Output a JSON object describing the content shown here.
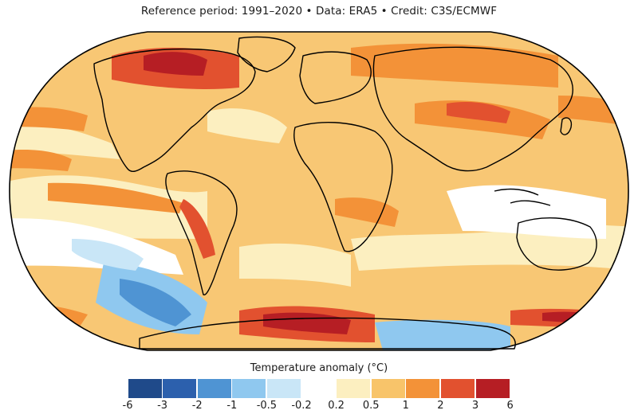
{
  "header": {
    "credit_line": "Reference period: 1991–2020 • Data: ERA5 • Credit: C3S/ECMWF"
  },
  "map": {
    "projection": "Robinson-style world map",
    "background_anomaly_color": "#f8c774",
    "coastline_color": "#000000"
  },
  "legend": {
    "title": "Temperature anomaly (°C)",
    "bins": [
      {
        "label": "-6",
        "color": "#1f4a8a"
      },
      {
        "label": "-3",
        "color": "#2c60ad"
      },
      {
        "label": "-2",
        "color": "#4f94d3"
      },
      {
        "label": "-1",
        "color": "#8fc8ef"
      },
      {
        "label": "-0.5",
        "color": "#c9e6f7"
      },
      {
        "label": "-0.2",
        "color": "#ffffff"
      },
      {
        "label": "0.2",
        "color": "#fcefc0"
      },
      {
        "label": "0.5",
        "color": "#f8c46a"
      },
      {
        "label": "1",
        "color": "#f39238"
      },
      {
        "label": "2",
        "color": "#e2512f"
      },
      {
        "label": "3",
        "color": "#b61e24"
      },
      {
        "label": "6",
        "color": ""
      }
    ]
  }
}
